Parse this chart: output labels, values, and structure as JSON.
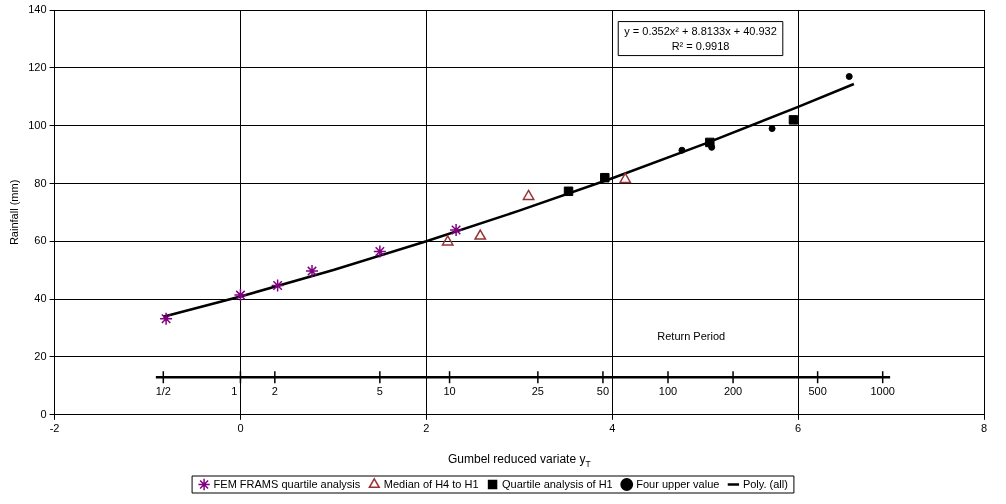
{
  "chart_data": {
    "type": "scatter",
    "xlabel": "Gumbel reduced variate y$_{T}$",
    "ylabel": "Rainfall (mm)",
    "xlim": [
      -2,
      8
    ],
    "xticks": [
      -2,
      0,
      2,
      4,
      6,
      8
    ],
    "ylim": [
      0,
      140
    ],
    "yticks": [
      0,
      20,
      40,
      60,
      80,
      100,
      120,
      140
    ],
    "grid": true,
    "legend": "bottom",
    "ref_lines": [
      {
        "axis": "y",
        "value": 13,
        "color": "#000000"
      }
    ],
    "annotations": [
      "y = 0.352x² + 8.8133x + 40.932",
      "R² = 0.9918",
      "Return Period",
      {
        "text": "1/2",
        "x": -0.83,
        "y": 13
      },
      {
        "text": "1",
        "x": 0,
        "y": 13
      },
      {
        "text": "2",
        "x": 0.37,
        "y": 13
      },
      {
        "text": "5",
        "x": 1.5,
        "y": 13
      },
      {
        "text": "10",
        "x": 2.25,
        "y": 13
      },
      {
        "text": "25",
        "x": 3.2,
        "y": 13
      },
      {
        "text": "50",
        "x": 3.9,
        "y": 13
      },
      {
        "text": "100",
        "x": 4.6,
        "y": 13
      },
      {
        "text": "200",
        "x": 5.3,
        "y": 13
      },
      {
        "text": "500",
        "x": 6.21,
        "y": 13
      },
      {
        "text": "1000",
        "x": 6.91,
        "y": 13
      }
    ],
    "series": [
      {
        "name": "FEM FRAMS quartile analysis",
        "type": "scatter",
        "marker": "cross",
        "color": "#800080",
        "x": [
          -0.8,
          0,
          0.4,
          0.77,
          1.5,
          2.32
        ],
        "values": [
          33.2,
          41.4,
          44.7,
          49.7,
          56.5,
          63.9
        ]
      },
      {
        "name": "Median of H4 to H1",
        "type": "scatter",
        "marker": "triangle",
        "color": "#993333",
        "x": [
          2.23,
          2.58,
          3.1,
          4.14
        ],
        "values": [
          59.8,
          61.8,
          75.5,
          81.4
        ]
      },
      {
        "name": "Quartile analysis of H1",
        "type": "scatter",
        "marker": "square",
        "color": "#000000",
        "x": [
          3.53,
          3.92,
          5.05,
          5.95
        ],
        "values": [
          77.3,
          82,
          94.2,
          102
        ]
      },
      {
        "name": "Four upper value",
        "type": "scatter",
        "marker": "circle",
        "color": "#000000",
        "x": [
          4.75,
          5.07,
          5.72,
          6.55
        ],
        "values": [
          91.5,
          92.5,
          99,
          117
        ]
      },
      {
        "name": "Poly. (all)",
        "type": "line",
        "marker": "none",
        "color": "#000000",
        "x": [
          -0.83,
          0,
          1,
          2,
          3,
          4,
          5,
          6,
          6.6
        ],
        "values": [
          33.9,
          40.9,
          50.1,
          60,
          70.6,
          81.8,
          93.8,
          106.5,
          114.4
        ]
      }
    ]
  }
}
